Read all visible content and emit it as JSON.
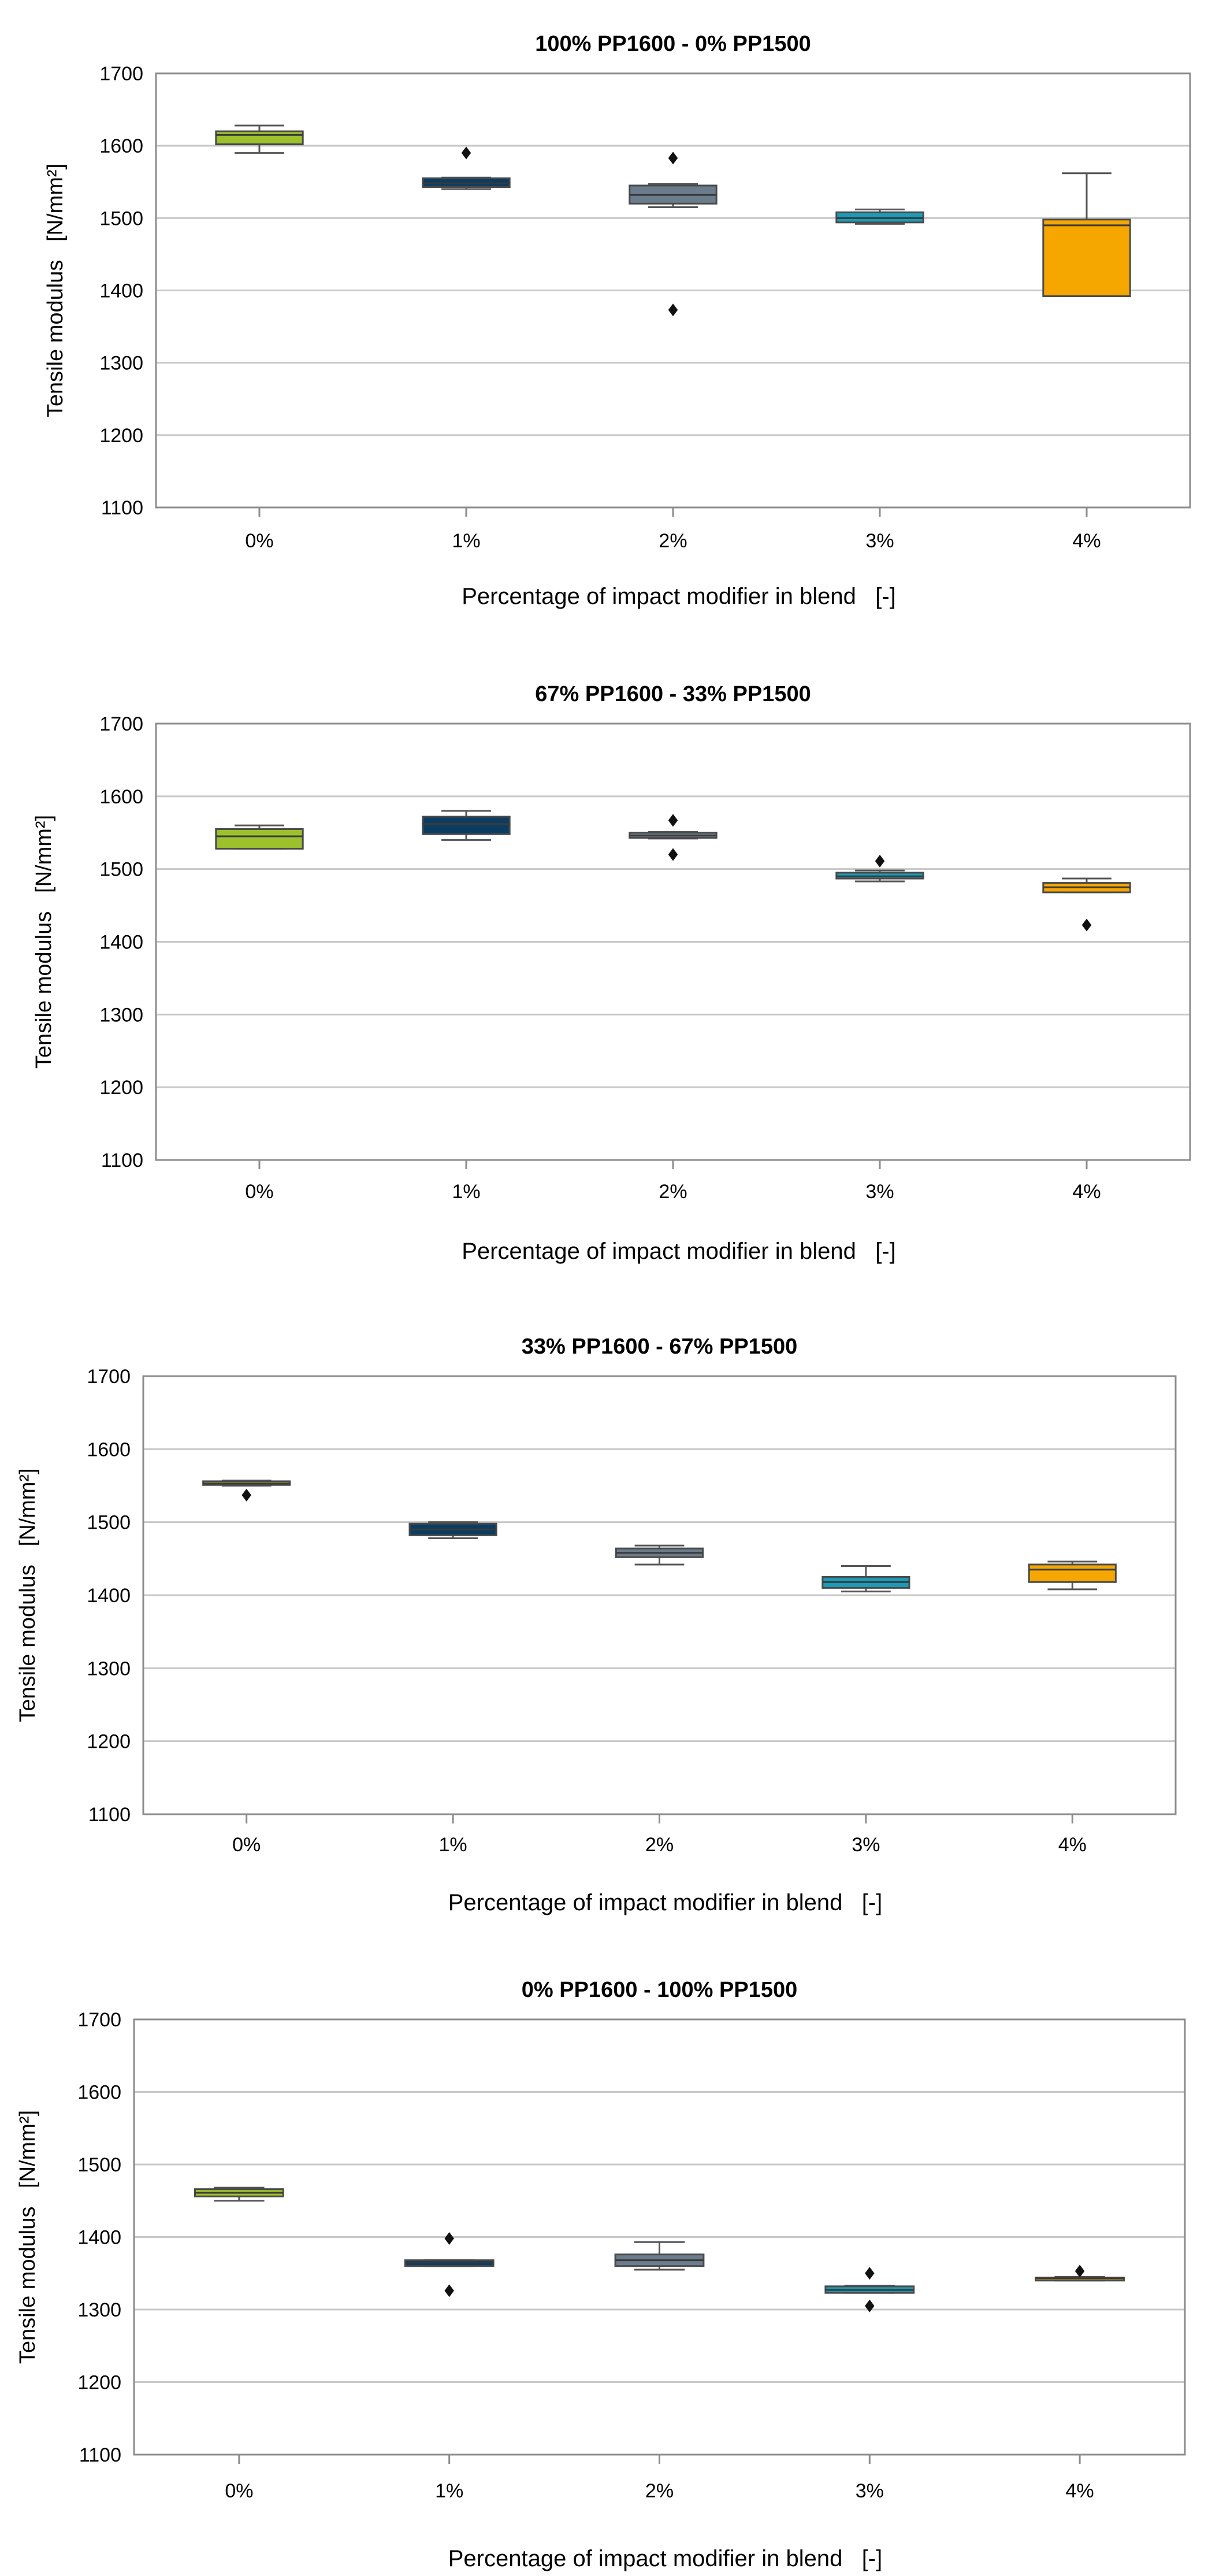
{
  "chart_data": [
    {
      "type": "box",
      "title": "100% PP1600 - 0% PP1500",
      "xlabel": "Percentage of impact modifier in blend   [-]",
      "ylabel": "Tensile modulus   [N/mm²]",
      "ylim": [
        1100,
        1700
      ],
      "yticks": [
        "1100",
        "1200",
        "1300",
        "1400",
        "1500",
        "1600",
        "1700"
      ],
      "grid": true,
      "categories": [
        "0%",
        "1%",
        "2%",
        "3%",
        "4%"
      ],
      "boxes": [
        {
          "category": "0%",
          "whisker_low": 1590,
          "q1": 1602,
          "median": 1615,
          "q3": 1620,
          "whisker_high": 1628,
          "outliers": []
        },
        {
          "category": "1%",
          "whisker_low": 1540,
          "q1": 1543,
          "median": 1548,
          "q3": 1555,
          "whisker_high": 1556,
          "outliers": [
            1590
          ]
        },
        {
          "category": "2%",
          "whisker_low": 1515,
          "q1": 1520,
          "median": 1532,
          "q3": 1545,
          "whisker_high": 1547,
          "outliers": [
            1583,
            1373
          ]
        },
        {
          "category": "3%",
          "whisker_low": 1492,
          "q1": 1494,
          "median": 1500,
          "q3": 1508,
          "whisker_high": 1512,
          "outliers": []
        },
        {
          "category": "4%",
          "whisker_low": 1392,
          "q1": 1392,
          "median": 1490,
          "q3": 1498,
          "whisker_high": 1562,
          "outliers": []
        }
      ]
    },
    {
      "type": "box",
      "title": "67% PP1600 - 33% PP1500",
      "xlabel": "Percentage of impact modifier in blend   [-]",
      "ylabel": "Tensile modulus   [N/mm²]",
      "ylim": [
        1100,
        1700
      ],
      "yticks": [
        "1100",
        "1200",
        "1300",
        "1400",
        "1500",
        "1600",
        "1700"
      ],
      "grid": true,
      "categories": [
        "0%",
        "1%",
        "2%",
        "3%",
        "4%"
      ],
      "boxes": [
        {
          "category": "0%",
          "whisker_low": 1528,
          "q1": 1528,
          "median": 1545,
          "q3": 1555,
          "whisker_high": 1560,
          "outliers": []
        },
        {
          "category": "1%",
          "whisker_low": 1540,
          "q1": 1548,
          "median": 1562,
          "q3": 1572,
          "whisker_high": 1580,
          "outliers": []
        },
        {
          "category": "2%",
          "whisker_low": 1542,
          "q1": 1543,
          "median": 1546,
          "q3": 1550,
          "whisker_high": 1551,
          "outliers": [
            1567,
            1520
          ]
        },
        {
          "category": "3%",
          "whisker_low": 1483,
          "q1": 1487,
          "median": 1490,
          "q3": 1495,
          "whisker_high": 1498,
          "outliers": [
            1511
          ]
        },
        {
          "category": "4%",
          "whisker_low": 1468,
          "q1": 1468,
          "median": 1475,
          "q3": 1481,
          "whisker_high": 1487,
          "outliers": [
            1423
          ]
        }
      ]
    },
    {
      "type": "box",
      "title": "33% PP1600 - 67% PP1500",
      "xlabel": "Percentage of impact modifier in blend   [-]",
      "ylabel": "Tensile modulus   [N/mm²]",
      "ylim": [
        1100,
        1700
      ],
      "yticks": [
        "1100",
        "1200",
        "1300",
        "1400",
        "1500",
        "1600",
        "1700"
      ],
      "grid": true,
      "categories": [
        "0%",
        "1%",
        "2%",
        "3%",
        "4%"
      ],
      "boxes": [
        {
          "category": "0%",
          "whisker_low": 1550,
          "q1": 1551,
          "median": 1553,
          "q3": 1556,
          "whisker_high": 1557,
          "outliers": [
            1537
          ]
        },
        {
          "category": "1%",
          "whisker_low": 1478,
          "q1": 1482,
          "median": 1490,
          "q3": 1498,
          "whisker_high": 1500,
          "outliers": []
        },
        {
          "category": "2%",
          "whisker_low": 1442,
          "q1": 1452,
          "median": 1458,
          "q3": 1464,
          "whisker_high": 1468,
          "outliers": []
        },
        {
          "category": "3%",
          "whisker_low": 1405,
          "q1": 1410,
          "median": 1418,
          "q3": 1425,
          "whisker_high": 1440,
          "outliers": []
        },
        {
          "category": "4%",
          "whisker_low": 1408,
          "q1": 1418,
          "median": 1435,
          "q3": 1442,
          "whisker_high": 1446,
          "outliers": []
        }
      ]
    },
    {
      "type": "box",
      "title": "0% PP1600 - 100% PP1500",
      "xlabel": "Percentage of impact modifier in blend   [-]",
      "ylabel": "Tensile modulus   [N/mm²]",
      "ylim": [
        1100,
        1700
      ],
      "yticks": [
        "1100",
        "1200",
        "1300",
        "1400",
        "1500",
        "1600",
        "1700"
      ],
      "grid": true,
      "categories": [
        "0%",
        "1%",
        "2%",
        "3%",
        "4%"
      ],
      "boxes": [
        {
          "category": "0%",
          "whisker_low": 1450,
          "q1": 1456,
          "median": 1461,
          "q3": 1466,
          "whisker_high": 1468,
          "outliers": []
        },
        {
          "category": "1%",
          "whisker_low": 1360,
          "q1": 1360,
          "median": 1365,
          "q3": 1368,
          "whisker_high": 1368,
          "outliers": [
            1398,
            1326
          ]
        },
        {
          "category": "2%",
          "whisker_low": 1355,
          "q1": 1360,
          "median": 1368,
          "q3": 1376,
          "whisker_high": 1393,
          "outliers": []
        },
        {
          "category": "3%",
          "whisker_low": 1323,
          "q1": 1323,
          "median": 1327,
          "q3": 1332,
          "whisker_high": 1333,
          "outliers": [
            1350,
            1305
          ]
        },
        {
          "category": "4%",
          "whisker_low": 1340,
          "q1": 1341,
          "median": 1343,
          "q3": 1344,
          "whisker_high": 1345,
          "outliers": [
            1353
          ]
        }
      ]
    }
  ],
  "colors": {
    "0%": "#9dc12d",
    "1%": "#0b3d63",
    "2%": "#6b7c8c",
    "3%": "#1a9cb8",
    "4%": "#f5a700",
    "grid": "#c8c8c8",
    "frame": "#8c8c8c"
  }
}
